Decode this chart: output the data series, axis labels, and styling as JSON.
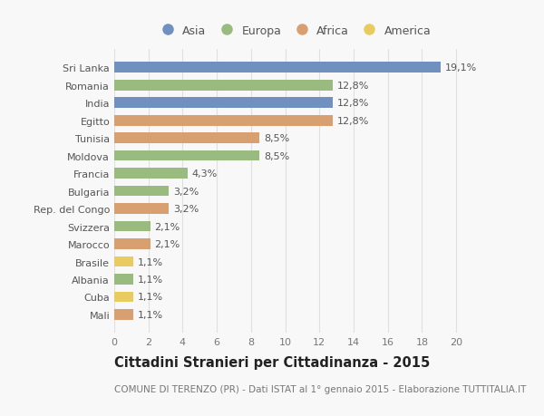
{
  "countries": [
    "Sri Lanka",
    "Romania",
    "India",
    "Egitto",
    "Tunisia",
    "Moldova",
    "Francia",
    "Bulgaria",
    "Rep. del Congo",
    "Svizzera",
    "Marocco",
    "Brasile",
    "Albania",
    "Cuba",
    "Mali"
  ],
  "values": [
    19.1,
    12.8,
    12.8,
    12.8,
    8.5,
    8.5,
    4.3,
    3.2,
    3.2,
    2.1,
    2.1,
    1.1,
    1.1,
    1.1,
    1.1
  ],
  "labels": [
    "19,1%",
    "12,8%",
    "12,8%",
    "12,8%",
    "8,5%",
    "8,5%",
    "4,3%",
    "3,2%",
    "3,2%",
    "2,1%",
    "2,1%",
    "1,1%",
    "1,1%",
    "1,1%",
    "1,1%"
  ],
  "continents": [
    "Asia",
    "Europa",
    "Asia",
    "Africa",
    "Africa",
    "Europa",
    "Europa",
    "Europa",
    "Africa",
    "Europa",
    "Africa",
    "America",
    "Europa",
    "America",
    "Africa"
  ],
  "continent_colors": {
    "Asia": "#7090c0",
    "Europa": "#99bb80",
    "Africa": "#d8a070",
    "America": "#e8cc60"
  },
  "legend_order": [
    "Asia",
    "Europa",
    "Africa",
    "America"
  ],
  "title": "Cittadini Stranieri per Cittadinanza - 2015",
  "subtitle": "COMUNE DI TERENZO (PR) - Dati ISTAT al 1° gennaio 2015 - Elaborazione TUTTITALIA.IT",
  "xlim": [
    0,
    21
  ],
  "xticks": [
    0,
    2,
    4,
    6,
    8,
    10,
    12,
    14,
    16,
    18,
    20
  ],
  "background_color": "#f8f8f8",
  "grid_color": "#e0e0e0",
  "bar_height": 0.6,
  "label_fontsize": 8,
  "tick_fontsize": 8,
  "title_fontsize": 10.5,
  "subtitle_fontsize": 7.5,
  "legend_fontsize": 9
}
